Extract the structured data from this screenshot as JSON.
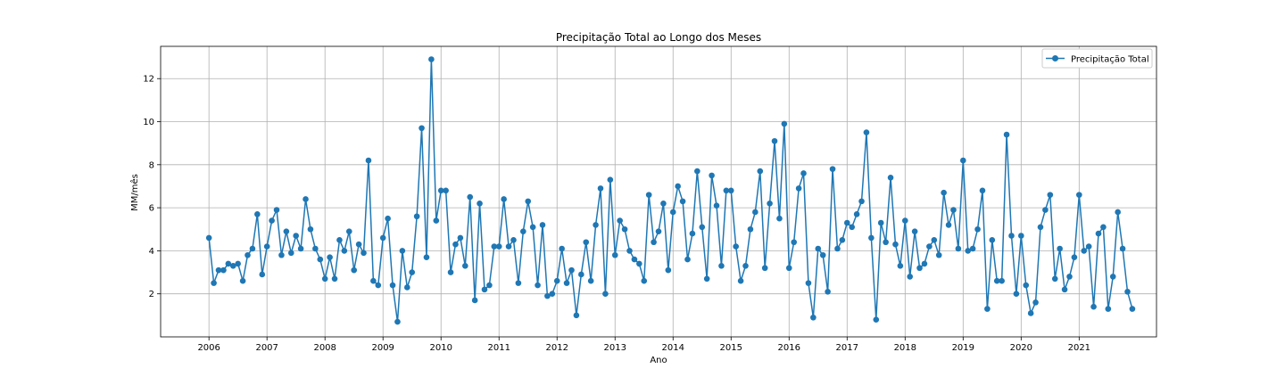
{
  "chart_data": {
    "type": "line",
    "title": "Precipitação Total ao Longo dos Meses",
    "xlabel": "Ano",
    "ylabel": "MM/mês",
    "x_ticks": [
      "2006",
      "2007",
      "2008",
      "2009",
      "2010",
      "2011",
      "2012",
      "2013",
      "2014",
      "2015",
      "2016",
      "2017",
      "2018",
      "2019",
      "2020",
      "2021"
    ],
    "xlim": [
      "2005-03",
      "2022-05"
    ],
    "ylim": [
      0,
      13.5
    ],
    "y_ticks": [
      2,
      4,
      6,
      8,
      10,
      12
    ],
    "grid": true,
    "legend_position": "top-right",
    "series": [
      {
        "name": "Precipitação Total",
        "color": "#1f77b4",
        "marker": "circle",
        "x_start": "2006-01",
        "x_step": "month",
        "values": [
          4.6,
          2.5,
          3.1,
          3.1,
          3.4,
          3.3,
          3.4,
          2.6,
          3.8,
          4.1,
          5.7,
          2.9,
          4.2,
          5.4,
          5.9,
          3.8,
          4.9,
          3.9,
          4.7,
          4.1,
          6.4,
          5.0,
          4.1,
          3.6,
          2.7,
          3.7,
          2.7,
          4.5,
          4.0,
          4.9,
          3.1,
          4.3,
          3.9,
          8.2,
          2.6,
          2.4,
          4.6,
          5.5,
          2.4,
          0.7,
          4.0,
          2.3,
          3.0,
          5.6,
          9.7,
          3.7,
          12.9,
          5.4,
          6.8,
          6.8,
          3.0,
          4.3,
          4.6,
          3.3,
          6.5,
          1.7,
          6.2,
          2.2,
          2.4,
          4.2,
          4.2,
          6.4,
          4.2,
          4.5,
          2.5,
          4.9,
          6.3,
          5.1,
          2.4,
          5.2,
          1.9,
          2.0,
          2.6,
          4.1,
          2.5,
          3.1,
          1.0,
          2.9,
          4.4,
          2.6,
          5.2,
          6.9,
          2.0,
          7.3,
          3.8,
          5.4,
          5.0,
          4.0,
          3.6,
          3.4,
          2.6,
          6.6,
          4.4,
          4.9,
          6.2,
          3.1,
          5.8,
          7.0,
          6.3,
          3.6,
          4.8,
          7.7,
          5.1,
          2.7,
          7.5,
          6.1,
          3.3,
          6.8,
          6.8,
          4.2,
          2.6,
          3.3,
          5.0,
          5.8,
          7.7,
          3.2,
          6.2,
          9.1,
          5.5,
          9.9,
          3.2,
          4.4,
          6.9,
          7.6,
          2.5,
          0.9,
          4.1,
          3.8,
          2.1,
          7.8,
          4.1,
          4.5,
          5.3,
          5.1,
          5.7,
          6.3,
          9.5,
          4.6,
          0.8,
          5.3,
          4.4,
          7.4,
          4.3,
          3.3,
          5.4,
          2.8,
          4.9,
          3.2,
          3.4,
          4.2,
          4.5,
          3.8,
          6.7,
          5.2,
          5.9,
          4.1,
          8.2,
          4.0,
          4.1,
          5.0,
          6.8,
          1.3,
          4.5,
          2.6,
          2.6,
          9.4,
          4.7,
          2.0,
          4.7,
          2.4,
          1.1,
          1.6,
          5.1,
          5.9,
          6.6,
          2.7,
          4.1,
          2.2,
          2.8,
          3.7,
          6.6,
          4.0,
          4.2,
          1.4,
          4.8,
          5.1,
          1.3,
          2.8,
          5.8,
          4.1,
          2.1,
          1.3
        ]
      }
    ]
  }
}
